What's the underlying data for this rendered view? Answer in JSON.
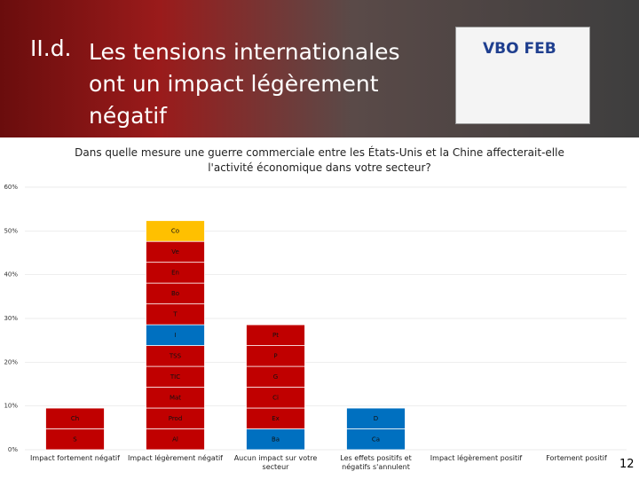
{
  "header": {
    "number": "II.d.",
    "title_lines": [
      "Les tensions internationales",
      "ont un impact légèrement",
      "négatif"
    ],
    "logo": "VBO FEB"
  },
  "page_number": "12",
  "chart_data": {
    "type": "bar",
    "stacked": true,
    "title": "Dans quelle mesure une guerre commerciale entre les États-Unis et la Chine affecterait-elle l'activité économique dans votre secteur?",
    "categories": [
      "Impact fortement négatif",
      "Impact légèrement négatif",
      "Aucun impact sur votre secteur",
      "Les effets positifs et négatifs s'annulent",
      "Impact légèrement positif",
      "Fortement positif"
    ],
    "bars": [
      {
        "segments": [
          {
            "label": "S",
            "value": 4.76,
            "color": "#c00000"
          },
          {
            "label": "Ch",
            "value": 4.76,
            "color": "#c00000"
          }
        ]
      },
      {
        "segments": [
          {
            "label": "Al",
            "value": 4.76,
            "color": "#c00000"
          },
          {
            "label": "Prod",
            "value": 4.76,
            "color": "#c00000"
          },
          {
            "label": "Mat",
            "value": 4.76,
            "color": "#c00000"
          },
          {
            "label": "TIC",
            "value": 4.76,
            "color": "#c00000"
          },
          {
            "label": "TSS",
            "value": 4.76,
            "color": "#c00000"
          },
          {
            "label": "I",
            "value": 4.76,
            "color": "#0070c0"
          },
          {
            "label": "T",
            "value": 4.76,
            "color": "#c00000"
          },
          {
            "label": "Bo",
            "value": 4.76,
            "color": "#c00000"
          },
          {
            "label": "En",
            "value": 4.76,
            "color": "#c00000"
          },
          {
            "label": "Ve",
            "value": 4.76,
            "color": "#c00000"
          },
          {
            "label": "Co",
            "value": 4.76,
            "color": "#ffc000"
          }
        ]
      },
      {
        "segments": [
          {
            "label": "Ba",
            "value": 4.76,
            "color": "#0070c0"
          },
          {
            "label": "Ex",
            "value": 4.76,
            "color": "#c00000"
          },
          {
            "label": "Ci",
            "value": 4.76,
            "color": "#c00000"
          },
          {
            "label": "G",
            "value": 4.76,
            "color": "#c00000"
          },
          {
            "label": "P",
            "value": 4.76,
            "color": "#c00000"
          },
          {
            "label": "Pt",
            "value": 4.76,
            "color": "#c00000"
          }
        ]
      },
      {
        "segments": [
          {
            "label": "Ca",
            "value": 4.76,
            "color": "#0070c0"
          },
          {
            "label": "D",
            "value": 4.76,
            "color": "#0070c0"
          }
        ]
      },
      {
        "segments": []
      },
      {
        "segments": []
      }
    ],
    "ylim": [
      0,
      60
    ],
    "yticks": [
      {
        "value": 0,
        "label": "0%"
      },
      {
        "value": 10,
        "label": "10%"
      },
      {
        "value": 20,
        "label": "20%"
      },
      {
        "value": 30,
        "label": "30%"
      },
      {
        "value": 40,
        "label": "40%"
      },
      {
        "value": 50,
        "label": "50%"
      },
      {
        "value": 60,
        "label": "60%"
      }
    ],
    "grid": true
  }
}
